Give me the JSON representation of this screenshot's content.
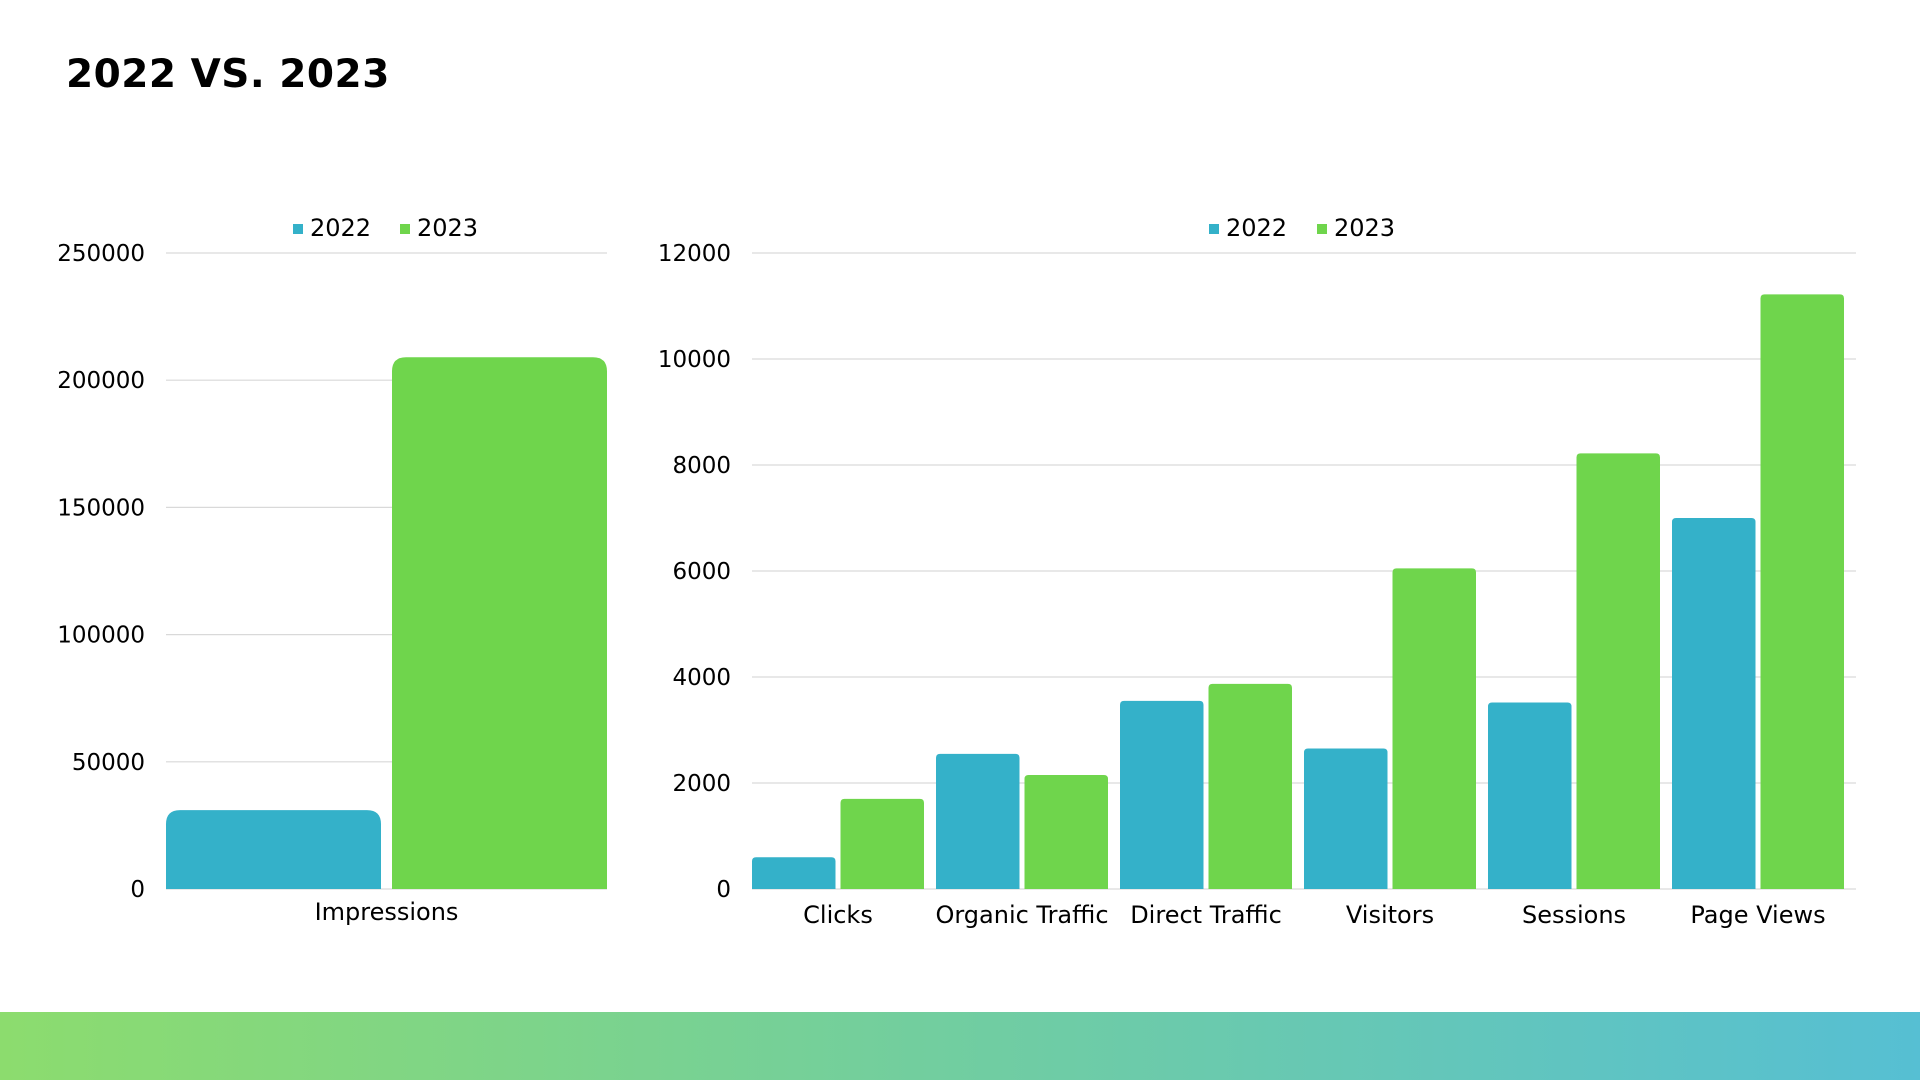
{
  "page": {
    "title": "2022 VS. 2023"
  },
  "colors": {
    "series_2022": "#34b1c9",
    "series_2023": "#6fd54c",
    "footer_gradient_start": "#8cdc6e",
    "footer_gradient_end": "#56bfd3"
  },
  "chart_data": [
    {
      "type": "bar",
      "categories": [
        "Impressions"
      ],
      "series": [
        {
          "name": "2022",
          "values": [
            31000
          ]
        },
        {
          "name": "2023",
          "values": [
            209000
          ]
        }
      ],
      "yticks": [
        0,
        50000,
        100000,
        150000,
        200000,
        250000
      ],
      "ylim": [
        0,
        250000
      ],
      "grid": true,
      "legend": "top-center"
    },
    {
      "type": "bar",
      "categories": [
        "Clicks",
        "Organic Traffic",
        "Direct Traffic",
        "Visitors",
        "Sessions",
        "Page Views"
      ],
      "series": [
        {
          "name": "2022",
          "values": [
            600,
            2550,
            3550,
            2650,
            3520,
            7000
          ]
        },
        {
          "name": "2023",
          "values": [
            1700,
            2150,
            3870,
            6050,
            8220,
            11220
          ]
        }
      ],
      "yticks": [
        0,
        2000,
        4000,
        6000,
        8000,
        10000,
        12000
      ],
      "ylim": [
        0,
        12000
      ],
      "grid": true,
      "legend": "top-center"
    }
  ]
}
